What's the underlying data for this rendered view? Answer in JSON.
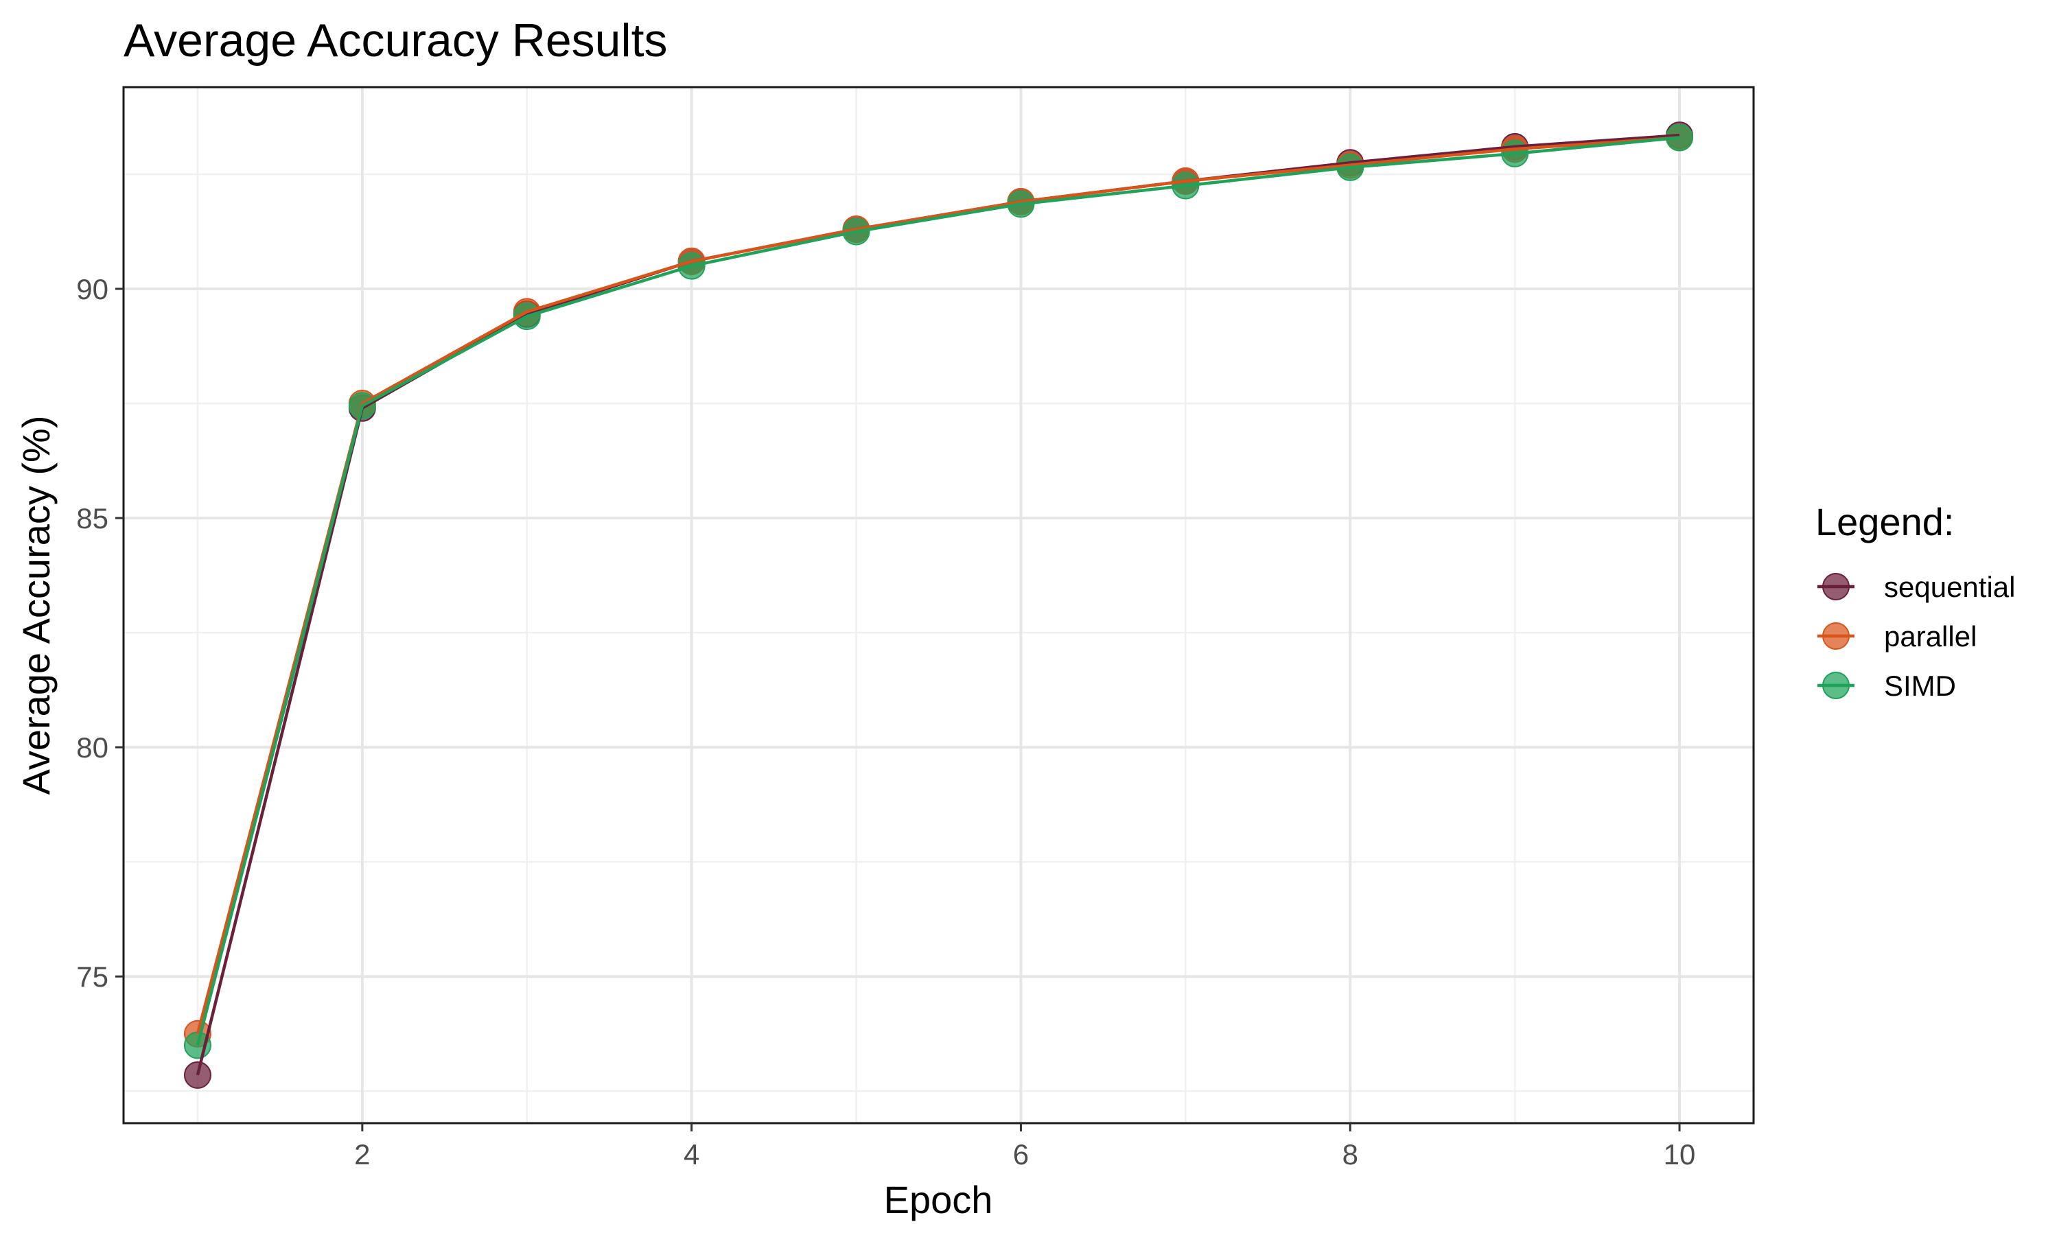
{
  "chart_data": {
    "type": "line",
    "title": "Average Accuracy Results",
    "xlabel": "Epoch",
    "ylabel": "Average Accuracy (%)",
    "x": [
      1,
      2,
      3,
      4,
      5,
      6,
      7,
      8,
      9,
      10
    ],
    "xlim": [
      0.55,
      10.45
    ],
    "ylim": [
      71.8,
      94.4
    ],
    "x_ticks": [
      2,
      4,
      6,
      8,
      10
    ],
    "y_ticks": [
      75,
      80,
      85,
      90
    ],
    "grid": true,
    "legend": {
      "title": "Legend:",
      "position": "right"
    },
    "series": [
      {
        "name": "sequential",
        "color": "#6b1f3b",
        "values": [
          72.85,
          87.4,
          89.45,
          90.6,
          91.3,
          91.9,
          92.35,
          92.75,
          93.1,
          93.35
        ]
      },
      {
        "name": "parallel",
        "color": "#d9541a",
        "values": [
          73.75,
          87.5,
          89.5,
          90.6,
          91.3,
          91.9,
          92.35,
          92.7,
          93.05,
          93.3
        ]
      },
      {
        "name": "SIMD",
        "color": "#1fa35a",
        "values": [
          73.5,
          87.45,
          89.4,
          90.5,
          91.25,
          91.85,
          92.25,
          92.65,
          92.95,
          93.3
        ]
      }
    ]
  }
}
